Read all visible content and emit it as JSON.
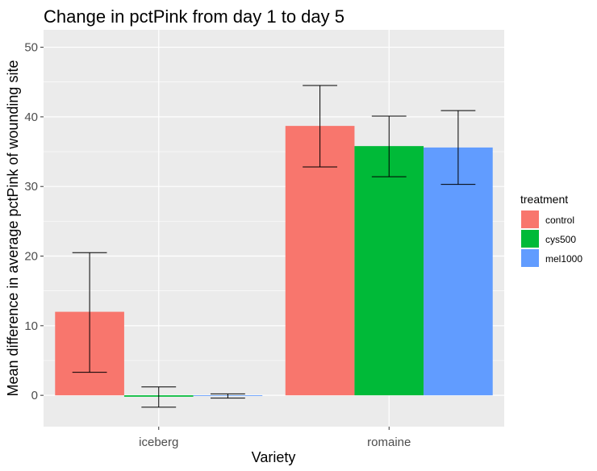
{
  "chart_data": {
    "type": "bar",
    "title": "Change in pctPink from day 1 to day 5",
    "xlabel": "Variety",
    "ylabel": "Mean difference in average pctPink of wounding site",
    "categories": [
      "iceberg",
      "romaine"
    ],
    "ylim": [
      -4.5,
      52.5
    ],
    "yticks": [
      0,
      10,
      20,
      30,
      40,
      50
    ],
    "grid": true,
    "legend": {
      "title": "treatment",
      "position": "right"
    },
    "series": [
      {
        "name": "control",
        "color": "#F8766D",
        "values": [
          12.0,
          38.7
        ],
        "error_low": [
          3.3,
          32.8
        ],
        "error_high": [
          20.5,
          44.5
        ]
      },
      {
        "name": "cys500",
        "color": "#00BA38",
        "values": [
          -0.2,
          35.8
        ],
        "error_low": [
          -1.7,
          31.4
        ],
        "error_high": [
          1.2,
          40.1
        ]
      },
      {
        "name": "mel1000",
        "color": "#619CFF",
        "values": [
          -0.1,
          35.6
        ],
        "error_low": [
          -0.4,
          30.3
        ],
        "error_high": [
          0.2,
          40.9
        ]
      }
    ]
  }
}
